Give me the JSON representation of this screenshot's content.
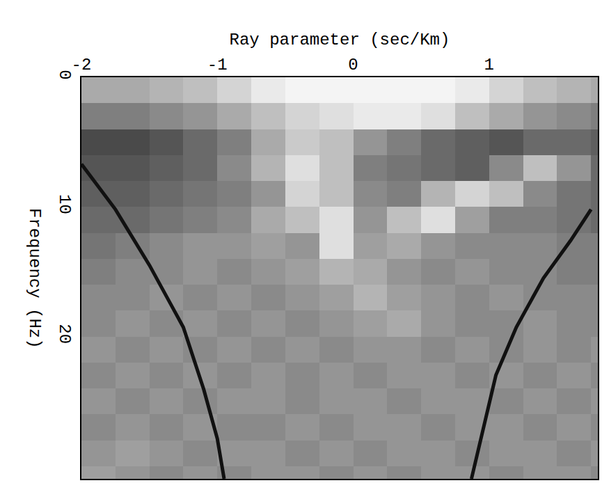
{
  "chart_data": {
    "type": "heatmap",
    "x_label": "Ray parameter (sec/Km)",
    "y_label": "Frequency (Hz)",
    "xlim": [
      -2,
      1.8
    ],
    "ylim": [
      0,
      31
    ],
    "xticks": [
      -2,
      -1,
      0,
      1
    ],
    "yticks": [
      0,
      10,
      20
    ],
    "grid": true,
    "x": [
      -1.875,
      -1.625,
      -1.375,
      -1.125,
      -0.875,
      -0.625,
      -0.375,
      -0.125,
      0.125,
      0.375,
      0.625,
      0.875,
      1.125,
      1.375,
      1.625,
      1.875
    ],
    "y": [
      1,
      3,
      5,
      7,
      9,
      11,
      13,
      15,
      17,
      19,
      21,
      23,
      25,
      27,
      29,
      31
    ],
    "zlim": [
      0,
      1
    ],
    "cells": [
      [
        0.4,
        0.4,
        0.35,
        0.3,
        0.2,
        0.1,
        0.05,
        0.05,
        0.05,
        0.05,
        0.05,
        0.1,
        0.2,
        0.3,
        0.35,
        0.4
      ],
      [
        0.6,
        0.6,
        0.55,
        0.5,
        0.4,
        0.3,
        0.2,
        0.15,
        0.1,
        0.1,
        0.15,
        0.3,
        0.4,
        0.5,
        0.55,
        0.6
      ],
      [
        0.85,
        0.85,
        0.8,
        0.7,
        0.6,
        0.4,
        0.25,
        0.3,
        0.5,
        0.6,
        0.7,
        0.75,
        0.8,
        0.7,
        0.7,
        0.75
      ],
      [
        0.8,
        0.8,
        0.75,
        0.7,
        0.55,
        0.35,
        0.15,
        0.3,
        0.6,
        0.65,
        0.7,
        0.75,
        0.55,
        0.3,
        0.5,
        0.7
      ],
      [
        0.75,
        0.75,
        0.7,
        0.65,
        0.6,
        0.5,
        0.2,
        0.3,
        0.55,
        0.6,
        0.35,
        0.2,
        0.3,
        0.55,
        0.65,
        0.7
      ],
      [
        0.7,
        0.7,
        0.65,
        0.6,
        0.55,
        0.4,
        0.3,
        0.15,
        0.5,
        0.3,
        0.15,
        0.45,
        0.6,
        0.6,
        0.65,
        0.7
      ],
      [
        0.65,
        0.6,
        0.55,
        0.5,
        0.5,
        0.45,
        0.5,
        0.15,
        0.45,
        0.4,
        0.5,
        0.55,
        0.55,
        0.55,
        0.6,
        0.6
      ],
      [
        0.6,
        0.55,
        0.55,
        0.5,
        0.55,
        0.5,
        0.45,
        0.35,
        0.4,
        0.5,
        0.55,
        0.5,
        0.55,
        0.55,
        0.6,
        0.6
      ],
      [
        0.55,
        0.55,
        0.5,
        0.55,
        0.5,
        0.55,
        0.5,
        0.45,
        0.35,
        0.45,
        0.5,
        0.55,
        0.5,
        0.55,
        0.55,
        0.55
      ],
      [
        0.55,
        0.5,
        0.55,
        0.5,
        0.55,
        0.5,
        0.55,
        0.5,
        0.45,
        0.4,
        0.5,
        0.55,
        0.55,
        0.5,
        0.55,
        0.55
      ],
      [
        0.5,
        0.55,
        0.5,
        0.55,
        0.5,
        0.55,
        0.5,
        0.55,
        0.5,
        0.5,
        0.55,
        0.5,
        0.55,
        0.5,
        0.55,
        0.5
      ],
      [
        0.55,
        0.5,
        0.55,
        0.5,
        0.55,
        0.5,
        0.55,
        0.5,
        0.55,
        0.5,
        0.5,
        0.55,
        0.5,
        0.55,
        0.5,
        0.55
      ],
      [
        0.5,
        0.55,
        0.5,
        0.55,
        0.5,
        0.5,
        0.55,
        0.5,
        0.5,
        0.55,
        0.5,
        0.5,
        0.55,
        0.5,
        0.55,
        0.5
      ],
      [
        0.55,
        0.5,
        0.55,
        0.5,
        0.55,
        0.55,
        0.5,
        0.55,
        0.5,
        0.5,
        0.55,
        0.5,
        0.5,
        0.55,
        0.5,
        0.55
      ],
      [
        0.5,
        0.45,
        0.5,
        0.55,
        0.5,
        0.5,
        0.55,
        0.5,
        0.55,
        0.5,
        0.5,
        0.55,
        0.5,
        0.5,
        0.55,
        0.5
      ],
      [
        0.45,
        0.5,
        0.55,
        0.5,
        0.55,
        0.5,
        0.5,
        0.55,
        0.5,
        0.55,
        0.5,
        0.5,
        0.55,
        0.5,
        0.5,
        0.55
      ]
    ],
    "curves": [
      {
        "color": "#111111",
        "line_style": "solid",
        "x": [
          -2.0,
          -1.75,
          -1.5,
          -1.25,
          -1.1,
          -1.0,
          -0.95
        ],
        "y": [
          6.7,
          10.2,
          14.5,
          19.3,
          24.1,
          27.9,
          31.0
        ]
      },
      {
        "color": "#111111",
        "line_style": "solid",
        "x": [
          0.87,
          0.95,
          1.05,
          1.2,
          1.4,
          1.6,
          1.75
        ],
        "y": [
          31.0,
          27.4,
          23.0,
          19.3,
          15.5,
          12.6,
          10.2
        ]
      }
    ]
  }
}
